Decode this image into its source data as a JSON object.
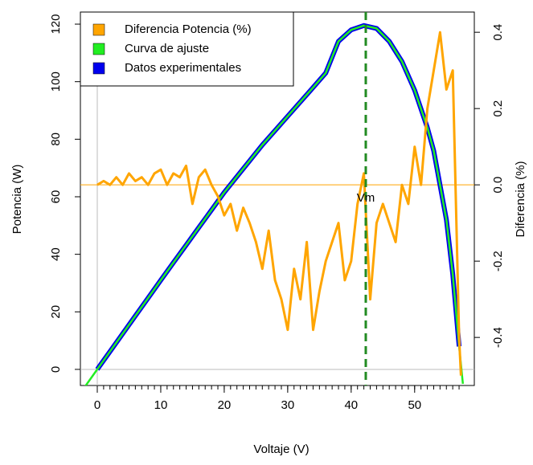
{
  "chart_data": {
    "type": "line",
    "xlabel": "Voltaje (V)",
    "ylabel": "Potencia (W)",
    "y2label": "Diferencia (%)",
    "y2label_color": "#ffa500",
    "xlim": [
      -2.66,
      59.4
    ],
    "ylim": [
      -5.6,
      124.2
    ],
    "y2lim": [
      -0.526,
      0.453
    ],
    "xticks": [
      0,
      10,
      20,
      30,
      40,
      50
    ],
    "xminorticks": [
      0,
      1,
      2,
      3,
      4,
      5,
      6,
      7,
      8,
      9,
      10,
      11,
      12,
      13,
      14,
      15,
      16,
      17,
      18,
      19,
      20,
      21,
      22,
      23,
      24,
      25,
      26,
      27,
      28,
      29,
      30,
      31,
      32,
      33,
      34,
      35,
      36,
      37,
      38,
      39,
      40,
      41,
      42,
      43,
      44,
      45,
      46,
      47,
      48,
      49,
      50,
      51,
      52,
      53,
      54,
      55,
      56,
      57
    ],
    "yticks": [
      0,
      20,
      40,
      60,
      80,
      100,
      120
    ],
    "y2ticks": [
      -0.4,
      -0.2,
      {
        "value": 0,
        "label": "0.0"
      },
      0.2,
      0.4
    ],
    "ref_lines": [
      {
        "orient": "v",
        "value": 0,
        "color": "#bbbbbb"
      },
      {
        "orient": "h",
        "value": 0,
        "color": "#bbbbbb"
      },
      {
        "orient": "h",
        "axis": "y2",
        "value": 0,
        "color": "#ffa500"
      }
    ],
    "vline": {
      "value": 42.3,
      "label": "Vm",
      "color": "#228b22"
    },
    "series": [
      {
        "name": "Diferencia Potencia (%)",
        "color": "#ffa500",
        "axis": "y2",
        "x": [
          0,
          1,
          2,
          3,
          4,
          5,
          6,
          7,
          8,
          9,
          10,
          11,
          12,
          13,
          14,
          15,
          16,
          17,
          18,
          19,
          20,
          21,
          22,
          23,
          24,
          25,
          26,
          27,
          28,
          29,
          30,
          31,
          32,
          33,
          34,
          35,
          36,
          37,
          38,
          39,
          40,
          41,
          42,
          43,
          44,
          45,
          46,
          47,
          48,
          49,
          50,
          51,
          52,
          53,
          54,
          55,
          56,
          57,
          57.3
        ],
        "values": [
          0.0,
          0.01,
          0.0,
          0.02,
          0.0,
          0.03,
          0.01,
          0.02,
          0.0,
          0.03,
          0.04,
          0.0,
          0.03,
          0.02,
          0.05,
          -0.05,
          0.02,
          0.04,
          0.0,
          -0.03,
          -0.08,
          -0.05,
          -0.12,
          -0.06,
          -0.1,
          -0.15,
          -0.22,
          -0.12,
          -0.25,
          -0.3,
          -0.38,
          -0.22,
          -0.3,
          -0.15,
          -0.38,
          -0.28,
          -0.2,
          -0.15,
          -0.1,
          -0.25,
          -0.2,
          -0.05,
          0.03,
          -0.3,
          -0.1,
          -0.05,
          -0.1,
          -0.15,
          0.0,
          -0.05,
          0.1,
          0.0,
          0.2,
          0.3,
          0.4,
          0.25,
          0.3,
          -0.4,
          -0.5
        ]
      },
      {
        "name": "Curva de ajuste",
        "color": "#22ee22",
        "x": [
          -2,
          0,
          2,
          4,
          6,
          8,
          10,
          12,
          14,
          16,
          18,
          20,
          22,
          24,
          26,
          28,
          30,
          32,
          34,
          36,
          38,
          40,
          42,
          44,
          46,
          48,
          50,
          52,
          53,
          54,
          55,
          56,
          57,
          57.6
        ],
        "values": [
          -6.2,
          0,
          6.2,
          12.4,
          18.6,
          24.8,
          31,
          37.1,
          43.2,
          49.3,
          55.4,
          61.5,
          67,
          72.5,
          78,
          83,
          88,
          93,
          98,
          103,
          114,
          118,
          119.5,
          118.5,
          114,
          107,
          97,
          84,
          76,
          64,
          52,
          33,
          8,
          -5
        ]
      },
      {
        "name": "Datos experimentales",
        "color": "#0000ee",
        "x": [
          0,
          2,
          4,
          6,
          8,
          10,
          12,
          14,
          16,
          18,
          20,
          22,
          24,
          26,
          28,
          30,
          32,
          34,
          36,
          38,
          40,
          42,
          44,
          46,
          48,
          50,
          52,
          53,
          54,
          55,
          56,
          57
        ],
        "values": [
          0,
          6.2,
          12.4,
          18.6,
          24.8,
          31,
          37.1,
          43.2,
          49.3,
          55.4,
          61.5,
          67,
          72.5,
          78,
          83,
          88,
          93,
          98,
          103,
          114,
          118,
          119.5,
          118.5,
          114,
          107,
          97,
          84,
          76,
          64,
          52,
          33,
          8
        ]
      }
    ]
  }
}
